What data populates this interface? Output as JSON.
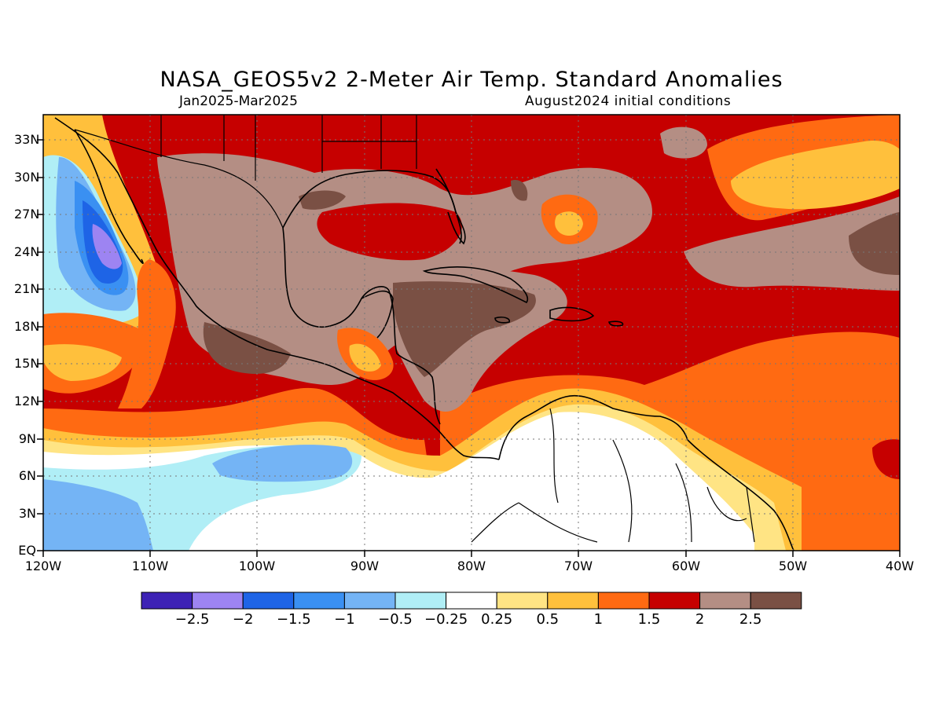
{
  "title": "NASA_GEOS5v2 2-Meter Air Temp. Standard Anomalies",
  "subtitle_left": "Jan2025-Mar2025",
  "subtitle_right": "August2024 initial conditions",
  "lat_labels": [
    "33N",
    "30N",
    "27N",
    "24N",
    "21N",
    "18N",
    "15N",
    "12N",
    "9N",
    "6N",
    "3N",
    "EQ"
  ],
  "lon_labels": [
    "120W",
    "110W",
    "100W",
    "90W",
    "80W",
    "70W",
    "60W",
    "50W",
    "40W"
  ],
  "legend": {
    "colors": [
      "#3d22b5",
      "#9d84f2",
      "#1e64e6",
      "#3a90f2",
      "#74b4f5",
      "#b0eef6",
      "#ffffff",
      "#ffe484",
      "#ffc03c",
      "#ff6a12",
      "#c60000",
      "#b48e84",
      "#7a5044"
    ],
    "labels": [
      "-2.5",
      "-2",
      "-1.5",
      "-1",
      "-0.5",
      "-0.25",
      "0.25",
      "0.5",
      "1",
      "1.5",
      "2",
      "2.5"
    ]
  }
}
